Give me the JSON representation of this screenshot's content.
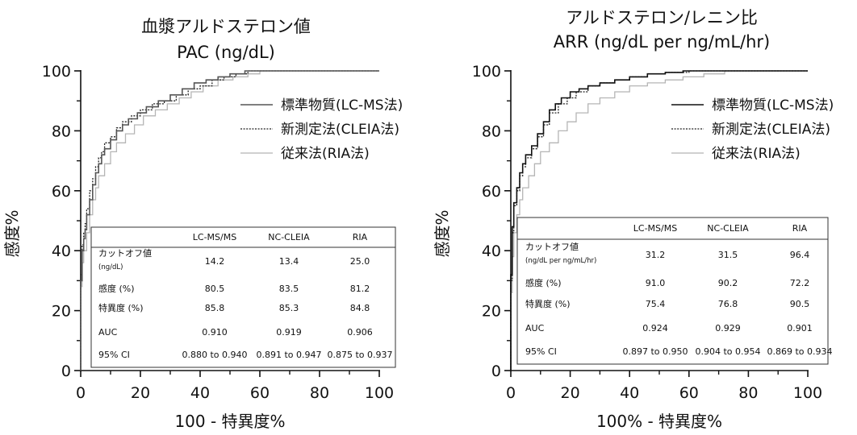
{
  "chart_data": [
    {
      "type": "line",
      "title": "血漿アルドステロン値",
      "subtitle": "PAC (ng/dL)",
      "xlabel": "100 - 特異度%",
      "ylabel": "感度%",
      "xlim": [
        0,
        100
      ],
      "ylim": [
        0,
        100
      ],
      "xticks": [
        "0",
        "20",
        "40",
        "60",
        "80",
        "100"
      ],
      "yticks": [
        "0",
        "20",
        "40",
        "60",
        "80",
        "100"
      ],
      "grid": false,
      "legend_position": "top-right",
      "series": [
        {
          "name": "標準物質(LC-MS法)",
          "style": "solid",
          "color": "#555555",
          "x": [
            0,
            0,
            0.5,
            0.5,
            1,
            1,
            1.5,
            1.5,
            2,
            2,
            3,
            3,
            4,
            4,
            5,
            5,
            6,
            6,
            7,
            7,
            8,
            8,
            10,
            10,
            12,
            12,
            14,
            14,
            16,
            16,
            19,
            19,
            22,
            22,
            26,
            26,
            30,
            30,
            34,
            34,
            38,
            38,
            42,
            42,
            46,
            46,
            50,
            50,
            55,
            55,
            100
          ],
          "y": [
            0,
            30,
            30,
            40,
            40,
            44,
            44,
            47,
            47,
            52,
            52,
            57,
            57,
            62,
            62,
            66,
            66,
            69,
            69,
            72,
            72,
            74,
            74,
            77,
            77,
            80,
            80,
            82,
            82,
            84,
            84,
            86,
            86,
            88,
            88,
            90,
            90,
            92,
            92,
            94,
            94,
            96,
            96,
            97,
            97,
            98,
            98,
            99,
            99,
            100,
            100
          ]
        },
        {
          "name": "新測定法(CLEIA法)",
          "style": "dotted",
          "color": "#222222",
          "x": [
            0,
            0,
            0.5,
            0.5,
            1,
            1,
            1.5,
            1.5,
            2,
            2,
            3,
            3,
            4,
            4,
            5,
            5,
            6,
            6,
            7,
            7,
            8,
            8,
            10,
            10,
            12,
            12,
            14,
            14,
            17,
            17,
            20,
            20,
            24,
            24,
            28,
            28,
            32,
            32,
            36,
            36,
            40,
            40,
            44,
            44,
            48,
            48,
            52,
            52,
            56,
            56,
            100
          ],
          "y": [
            0,
            32,
            32,
            42,
            42,
            46,
            46,
            49,
            49,
            54,
            54,
            60,
            60,
            64,
            64,
            68,
            68,
            71,
            71,
            73,
            73,
            76,
            76,
            78,
            78,
            81,
            81,
            83,
            83,
            85,
            85,
            87,
            87,
            89,
            89,
            90,
            90,
            92,
            92,
            94,
            94,
            95,
            95,
            97,
            97,
            98,
            98,
            99,
            99,
            100,
            100
          ]
        },
        {
          "name": "従来法(RIA法)",
          "style": "solid-light",
          "color": "#b5b5b5",
          "x": [
            0,
            0,
            0.5,
            0.5,
            1,
            1,
            2,
            2,
            3,
            3,
            4,
            4,
            5,
            5,
            6,
            6,
            8,
            8,
            10,
            10,
            12,
            12,
            15,
            15,
            18,
            18,
            21,
            21,
            25,
            25,
            29,
            29,
            33,
            33,
            37,
            37,
            41,
            41,
            46,
            46,
            51,
            51,
            56,
            56,
            60,
            60,
            100
          ],
          "y": [
            0,
            28,
            28,
            36,
            36,
            40,
            40,
            46,
            46,
            52,
            52,
            57,
            57,
            61,
            61,
            65,
            65,
            69,
            69,
            73,
            73,
            76,
            76,
            79,
            79,
            82,
            82,
            85,
            85,
            87,
            87,
            89,
            89,
            91,
            91,
            93,
            93,
            95,
            95,
            97,
            97,
            98,
            98,
            99,
            99,
            100,
            100
          ]
        }
      ],
      "table": {
        "headers": [
          "",
          "LC-MS/MS",
          "NC-CLEIA",
          "RIA"
        ],
        "rows": [
          {
            "label": "カットオフ値",
            "sublabel": "(ng/dL)",
            "values": [
              "14.2",
              "13.4",
              "25.0"
            ]
          },
          {
            "label": "感度 (%)",
            "sublabel": "",
            "values": [
              "80.5",
              "83.5",
              "81.2"
            ]
          },
          {
            "label": "特異度 (%)",
            "sublabel": "",
            "values": [
              "85.8",
              "85.3",
              "84.8"
            ]
          },
          {
            "label": "AUC",
            "sublabel": "",
            "values": [
              "0.910",
              "0.919",
              "0.906"
            ]
          },
          {
            "label": "95% CI",
            "sublabel": "",
            "values": [
              "0.880 to 0.940",
              "0.891 to 0.947",
              "0.875 to 0.937"
            ]
          }
        ]
      }
    },
    {
      "type": "line",
      "title": "アルドステロン/レニン比",
      "subtitle": "ARR (ng/dL per ng/mL/hr)",
      "xlabel": "100% - 特異度%",
      "ylabel": "感度%",
      "xlim": [
        0,
        100
      ],
      "ylim": [
        0,
        100
      ],
      "xticks": [
        "0",
        "20",
        "40",
        "60",
        "80",
        "100"
      ],
      "yticks": [
        "0",
        "20",
        "40",
        "60",
        "80",
        "100"
      ],
      "grid": false,
      "legend_position": "top-right",
      "series": [
        {
          "name": "標準物質(LC-MS法)",
          "style": "solid",
          "color": "#111111",
          "x": [
            0,
            0,
            0.5,
            0.5,
            1,
            1,
            2,
            2,
            3,
            3,
            4,
            4,
            5,
            5,
            7,
            7,
            9,
            9,
            11,
            11,
            13,
            13,
            15,
            15,
            17,
            17,
            20,
            20,
            23,
            23,
            26,
            26,
            30,
            30,
            35,
            35,
            40,
            40,
            46,
            46,
            52,
            52,
            58,
            58,
            100
          ],
          "y": [
            0,
            32,
            32,
            48,
            48,
            56,
            56,
            61,
            61,
            66,
            66,
            69,
            69,
            72,
            72,
            75,
            75,
            79,
            79,
            83,
            83,
            87,
            87,
            89,
            89,
            91,
            91,
            93,
            93,
            94,
            94,
            95,
            95,
            96,
            96,
            97,
            97,
            98,
            98,
            99,
            99,
            99.5,
            99.5,
            100,
            100
          ]
        },
        {
          "name": "新測定法(CLEIA法)",
          "style": "dotted",
          "color": "#222222",
          "x": [
            0,
            0,
            0.5,
            0.5,
            1,
            1,
            2,
            2,
            3,
            3,
            4,
            4,
            5,
            5,
            7,
            7,
            9,
            9,
            11,
            11,
            13,
            13,
            16,
            16,
            19,
            19,
            22,
            22,
            26,
            26,
            30,
            30,
            35,
            35,
            40,
            40,
            46,
            46,
            52,
            52,
            60,
            60,
            100
          ],
          "y": [
            0,
            30,
            30,
            46,
            46,
            55,
            55,
            60,
            60,
            65,
            65,
            68,
            68,
            71,
            71,
            74,
            74,
            78,
            78,
            82,
            82,
            86,
            86,
            89,
            89,
            91,
            91,
            93,
            93,
            95,
            95,
            96,
            96,
            97,
            97,
            98,
            98,
            99,
            99,
            99.5,
            99.5,
            100,
            100
          ]
        },
        {
          "name": "従来法(RIA法)",
          "style": "solid-light",
          "color": "#b5b5b5",
          "x": [
            0,
            0,
            0.5,
            0.5,
            1,
            1,
            2,
            2,
            3,
            3,
            4,
            4,
            6,
            6,
            8,
            8,
            10,
            10,
            13,
            13,
            16,
            16,
            19,
            19,
            22,
            22,
            26,
            26,
            30,
            30,
            35,
            35,
            40,
            40,
            46,
            46,
            52,
            52,
            58,
            58,
            65,
            65,
            72,
            72,
            100
          ],
          "y": [
            0,
            26,
            26,
            38,
            38,
            46,
            46,
            52,
            52,
            57,
            57,
            61,
            61,
            65,
            65,
            69,
            69,
            73,
            73,
            76,
            76,
            80,
            80,
            83,
            83,
            86,
            86,
            89,
            89,
            91,
            91,
            93,
            93,
            95,
            95,
            96,
            96,
            97,
            97,
            98,
            98,
            99,
            99,
            100,
            100
          ]
        }
      ],
      "table": {
        "headers": [
          "",
          "LC-MS/MS",
          "NC-CLEIA",
          "RIA"
        ],
        "rows": [
          {
            "label": "カットオフ値",
            "sublabel": "(ng/dL per ng/mL/hr)",
            "values": [
              "31.2",
              "31.5",
              "96.4"
            ]
          },
          {
            "label": "感度 (%)",
            "sublabel": "",
            "values": [
              "91.0",
              "90.2",
              "72.2"
            ]
          },
          {
            "label": "特異度 (%)",
            "sublabel": "",
            "values": [
              "75.4",
              "76.8",
              "90.5"
            ]
          },
          {
            "label": "AUC",
            "sublabel": "",
            "values": [
              "0.924",
              "0.929",
              "0.901"
            ]
          },
          {
            "label": "95% CI",
            "sublabel": "",
            "values": [
              "0.897 to 0.950",
              "0.904 to 0.954",
              "0.869 to 0.934"
            ]
          }
        ]
      }
    }
  ]
}
